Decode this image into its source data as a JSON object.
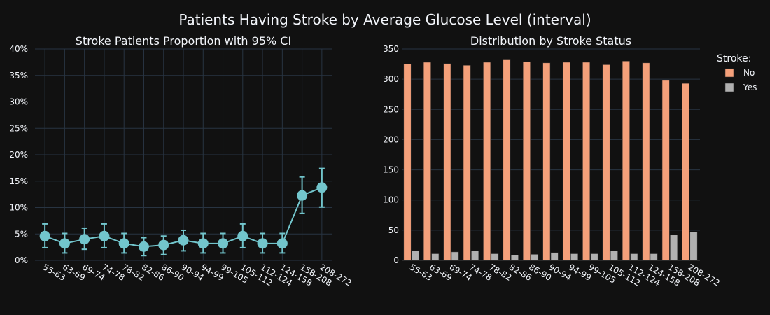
{
  "title": "Patients Having Stroke by Average Glucose Level (interval)",
  "colors": {
    "line": "#72c5cc",
    "no": "#f4a07a",
    "yes": "#b0b0b0",
    "grid": "#283442",
    "background": "#111111"
  },
  "chart_data": [
    {
      "type": "line",
      "title": "Stroke Patients Proportion with 95% CI",
      "xlabel": "",
      "ylabel": "",
      "categories": [
        "55-63",
        "63-69",
        "69-74",
        "74-78",
        "78-82",
        "82-86",
        "86-90",
        "90-94",
        "94-99",
        "99-105",
        "105-112",
        "112-124",
        "124-158",
        "158-208",
        "208-272"
      ],
      "values": [
        4.6,
        3.2,
        4.0,
        4.6,
        3.2,
        2.6,
        2.9,
        3.8,
        3.2,
        3.2,
        4.6,
        3.2,
        3.2,
        12.3,
        13.8
      ],
      "ci_low": [
        2.4,
        1.4,
        2.1,
        2.4,
        1.4,
        0.9,
        1.1,
        1.8,
        1.4,
        1.4,
        2.4,
        1.4,
        1.4,
        8.9,
        10.1
      ],
      "ci_high": [
        6.9,
        5.1,
        6.1,
        6.9,
        5.1,
        4.3,
        4.6,
        5.7,
        5.1,
        5.1,
        6.9,
        5.1,
        5.1,
        15.8,
        17.4
      ],
      "ylim": [
        0,
        40
      ],
      "yticks": [
        0,
        5,
        10,
        15,
        20,
        25,
        30,
        35,
        40
      ],
      "ytick_labels": [
        "0%",
        "5%",
        "10%",
        "15%",
        "20%",
        "25%",
        "30%",
        "35%",
        "40%"
      ],
      "grid": true
    },
    {
      "type": "bar",
      "title": "Distribution by Stroke Status",
      "xlabel": "",
      "ylabel": "",
      "categories": [
        "55-63",
        "63-69",
        "69-74",
        "74-78",
        "78-82",
        "82-86",
        "86-90",
        "90-94",
        "94-99",
        "99-105",
        "105-112",
        "112-124",
        "124-158",
        "158-208",
        "208-272"
      ],
      "series": [
        {
          "name": "No",
          "values": [
            325,
            328,
            326,
            323,
            328,
            332,
            329,
            327,
            328,
            328,
            324,
            330,
            327,
            298,
            293
          ]
        },
        {
          "name": "Yes",
          "values": [
            16,
            11,
            14,
            16,
            11,
            9,
            10,
            13,
            11,
            11,
            16,
            11,
            11,
            42,
            47
          ]
        }
      ],
      "ylim": [
        0,
        350
      ],
      "yticks": [
        0,
        50,
        100,
        150,
        200,
        250,
        300,
        350
      ],
      "ytick_labels": [
        "0",
        "50",
        "100",
        "150",
        "200",
        "250",
        "300",
        "350"
      ],
      "grid": true,
      "legend_title": "Stroke:",
      "legend_position": "top-right"
    }
  ]
}
